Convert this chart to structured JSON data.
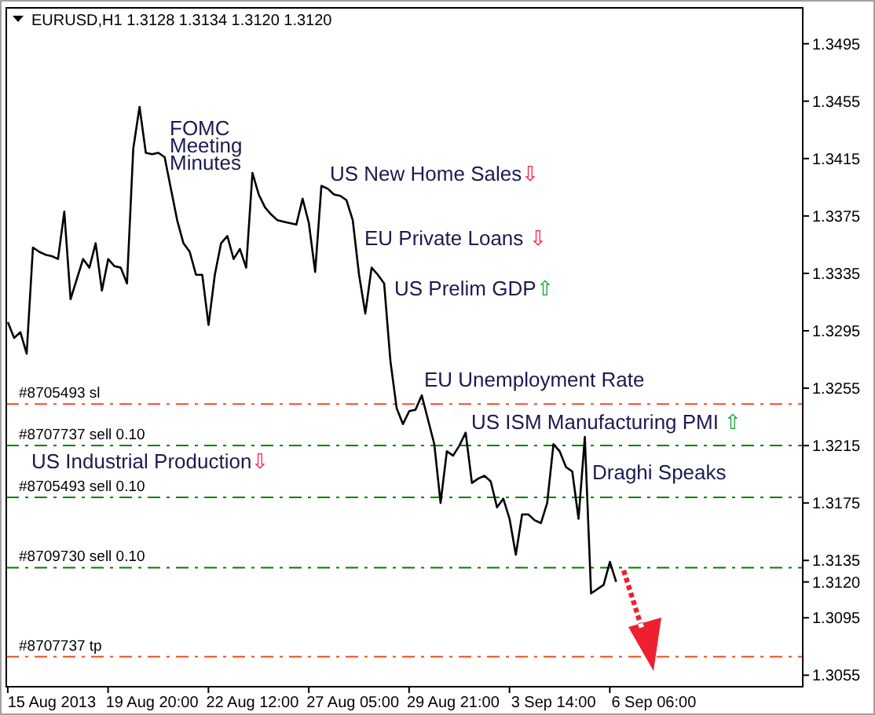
{
  "chart_data": {
    "type": "line",
    "title": "EURUSD,H1  1.3128 1.3134 1.3120 1.3120",
    "categories": [
      null,
      null,
      null,
      null,
      null,
      null,
      null,
      "15 Aug 2013",
      null,
      null,
      null,
      null,
      null,
      null,
      null,
      null,
      null,
      null,
      null,
      null,
      null,
      null,
      null,
      "19 Aug 20:00",
      null,
      null,
      null,
      null,
      null,
      null,
      null,
      null,
      null,
      null,
      null,
      null,
      null,
      null,
      null,
      "22 Aug 12:00",
      null,
      null,
      null,
      null,
      null,
      null,
      null,
      null,
      null,
      null,
      null,
      null,
      null,
      null,
      null,
      "27 Aug 05:00",
      null,
      null,
      null,
      null,
      null,
      null,
      null,
      null,
      null,
      null,
      null,
      null,
      null,
      null,
      null,
      "29 Aug 21:00",
      null,
      null,
      null,
      null,
      null,
      null,
      null,
      null,
      null,
      null,
      null,
      null,
      null,
      null,
      null,
      "3 Sep 14:00",
      null,
      null,
      null,
      null,
      null,
      null,
      null,
      null,
      null,
      null,
      null,
      null,
      null,
      null,
      null,
      "6 Sep 06:00",
      null,
      null,
      null,
      null,
      null,
      null,
      null,
      null,
      null,
      null,
      null,
      null,
      null,
      null,
      null,
      null,
      null,
      null,
      null,
      null,
      null,
      null,
      null
    ],
    "series": [
      {
        "color": "#000000",
        "values": [
          1.3301,
          1.329,
          1.3294,
          1.3279,
          1.3353,
          1.335,
          1.3348,
          1.3347,
          1.3345,
          1.3378,
          1.3317,
          1.3331,
          1.3345,
          1.3339,
          1.3356,
          1.3323,
          1.3345,
          1.334,
          1.3339,
          1.3328,
          1.3422,
          1.3451,
          1.3419,
          1.3418,
          1.3419,
          1.3416,
          1.3394,
          1.3372,
          1.3356,
          1.335,
          1.3334,
          1.3334,
          1.3299,
          1.3334,
          1.3356,
          1.3361,
          1.3345,
          1.3352,
          1.3339,
          1.3405,
          1.339,
          1.3381,
          1.3376,
          1.3372,
          1.3371,
          1.337,
          1.3369,
          1.3387,
          1.337,
          1.3336,
          1.3396,
          1.3394,
          1.339,
          1.3389,
          1.3386,
          1.3372,
          1.3334,
          1.3307,
          1.3339,
          1.3334,
          1.3328,
          1.3274,
          1.3241,
          1.323,
          1.3239,
          1.324,
          1.325,
          1.3233,
          1.3216,
          1.3175,
          1.3211,
          1.3208,
          1.3215,
          1.3224,
          1.3189,
          1.3192,
          1.3194,
          1.319,
          1.3172,
          1.3178,
          1.3164,
          1.3139,
          1.3167,
          1.3167,
          1.3163,
          1.3161,
          1.3175,
          1.3216,
          1.3211,
          1.32,
          1.3197,
          1.3164,
          1.3221,
          1.3112,
          1.3115,
          1.3118,
          1.3134,
          1.312,
          null,
          null,
          null,
          null,
          null,
          null,
          null,
          null,
          null,
          null,
          null,
          null,
          null,
          null,
          null,
          null,
          null,
          null,
          null,
          null,
          null,
          null,
          null,
          null,
          null,
          null,
          null,
          null,
          null
        ]
      }
    ],
    "ylim": [
      1.3047,
      1.352
    ],
    "yticks": [
      1.3495,
      1.3455,
      1.3415,
      1.3375,
      1.3335,
      1.3295,
      1.3255,
      1.3215,
      1.3175,
      1.3135,
      {
        "value": 1.312,
        "label": "1.3120"
      },
      1.3095,
      1.3055
    ],
    "grid": false,
    "ref_lines": [
      {
        "axis": "y",
        "value": 1.3244,
        "label": "#8705493 sl",
        "color": "#f05020",
        "line_style": "dashed"
      },
      {
        "axis": "y",
        "value": 1.3215,
        "label": "#8707737 sell 0.10",
        "color": "#008000",
        "line_style": "dashed"
      },
      {
        "axis": "y",
        "value": 1.3179,
        "label": "#8705493 sell 0.10",
        "color": "#008000",
        "line_style": "dashed"
      },
      {
        "axis": "y",
        "value": 1.313,
        "label": "#8709730 sell 0.10",
        "color": "#008000",
        "line_style": "dashed"
      },
      {
        "axis": "y",
        "value": 1.3068,
        "label": "#8707737 tp",
        "color": "#f05020",
        "line_style": "dashed"
      }
    ],
    "annotations": [
      "FOMC Meeting Minutes",
      "US New Home Sales⇩",
      "EU Private Loans ⇩",
      "US Prelim GDP⇧",
      "EU Unemployment Rate",
      "US ISM Manufacturing PMI ⇧",
      "Draghi Speaks",
      "US Industrial Production⇩"
    ]
  }
}
